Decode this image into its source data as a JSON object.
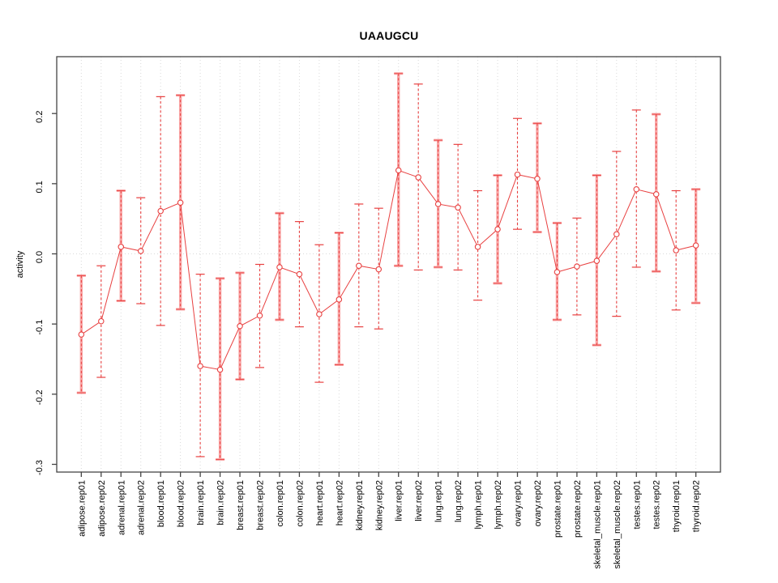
{
  "chart_data": {
    "type": "scatter",
    "title": "UAAUGCU",
    "xlabel": "",
    "ylabel": "activity",
    "ylim": [
      -0.311,
      0.281
    ],
    "yticks": [
      -0.3,
      -0.2,
      -0.1,
      0.0,
      0.1,
      0.2
    ],
    "ytick_labels": [
      "-0.3",
      "-0.2",
      "-0.1",
      "0.0",
      "0.1",
      "0.2"
    ],
    "grid": "dotted vertical line per category; dotted horizontal line at y=0",
    "legend_position": "none",
    "marker": "open-circle",
    "colors": {
      "series_line": "#e84040",
      "errorbar_dashed": "#e84040",
      "errorbar_solid": "#f9a6a6",
      "gridline": "#d9d9d9",
      "frame": "#454545",
      "text": "#000000",
      "background": "#ffffff"
    },
    "categories": [
      "adipose.rep01",
      "adipose.rep02",
      "adrenal.rep01",
      "adrenal.rep02",
      "blood.rep01",
      "blood.rep02",
      "brain.rep01",
      "brain.rep02",
      "breast.rep01",
      "breast.rep02",
      "colon.rep01",
      "colon.rep02",
      "heart.rep01",
      "heart.rep02",
      "kidney.rep01",
      "kidney.rep02",
      "liver.rep01",
      "liver.rep02",
      "lung.rep01",
      "lung.rep02",
      "lymph.rep01",
      "lymph.rep02",
      "ovary.rep01",
      "ovary.rep02",
      "prostate.rep01",
      "prostate.rep02",
      "skeletal_muscle.rep01",
      "skeletal_muscle.rep02",
      "testes.rep01",
      "testes.rep02",
      "thyroid.rep01",
      "thyroid.rep02"
    ],
    "series": [
      {
        "name": "activity",
        "values": [
          -0.115,
          -0.096,
          0.01,
          0.004,
          0.061,
          0.073,
          -0.16,
          -0.165,
          -0.103,
          -0.088,
          -0.019,
          -0.029,
          -0.086,
          -0.065,
          -0.017,
          -0.022,
          0.119,
          0.109,
          0.071,
          0.066,
          0.01,
          0.035,
          0.113,
          0.107,
          -0.026,
          -0.018,
          -0.01,
          0.028,
          0.092,
          0.085,
          0.005,
          0.012
        ]
      },
      {
        "name": "ci_low",
        "values": [
          -0.198,
          -0.176,
          -0.067,
          -0.071,
          -0.102,
          -0.079,
          -0.289,
          -0.293,
          -0.179,
          -0.162,
          -0.094,
          -0.104,
          -0.183,
          -0.158,
          -0.104,
          -0.107,
          -0.017,
          -0.023,
          -0.019,
          -0.023,
          -0.066,
          -0.042,
          0.035,
          0.031,
          -0.094,
          -0.087,
          -0.13,
          -0.089,
          -0.019,
          -0.025,
          -0.08,
          -0.07
        ]
      },
      {
        "name": "ci_high",
        "values": [
          -0.031,
          -0.017,
          0.09,
          0.08,
          0.224,
          0.226,
          -0.029,
          -0.035,
          -0.027,
          -0.015,
          0.058,
          0.046,
          0.013,
          0.03,
          0.071,
          0.065,
          0.257,
          0.242,
          0.162,
          0.156,
          0.09,
          0.112,
          0.193,
          0.186,
          0.044,
          0.051,
          0.112,
          0.146,
          0.205,
          0.199,
          0.09,
          0.092
        ]
      }
    ],
    "errorbar_styles": [
      "solid",
      "dashed",
      "solid",
      "dashed",
      "dashed",
      "solid",
      "dashed",
      "solid",
      "solid",
      "dashed",
      "solid",
      "dashed",
      "dashed",
      "solid",
      "dashed",
      "dashed",
      "solid",
      "dashed",
      "solid",
      "dashed",
      "dashed",
      "solid",
      "dashed",
      "solid",
      "solid",
      "dashed",
      "solid",
      "dashed",
      "dashed",
      "solid",
      "dashed",
      "solid"
    ]
  }
}
